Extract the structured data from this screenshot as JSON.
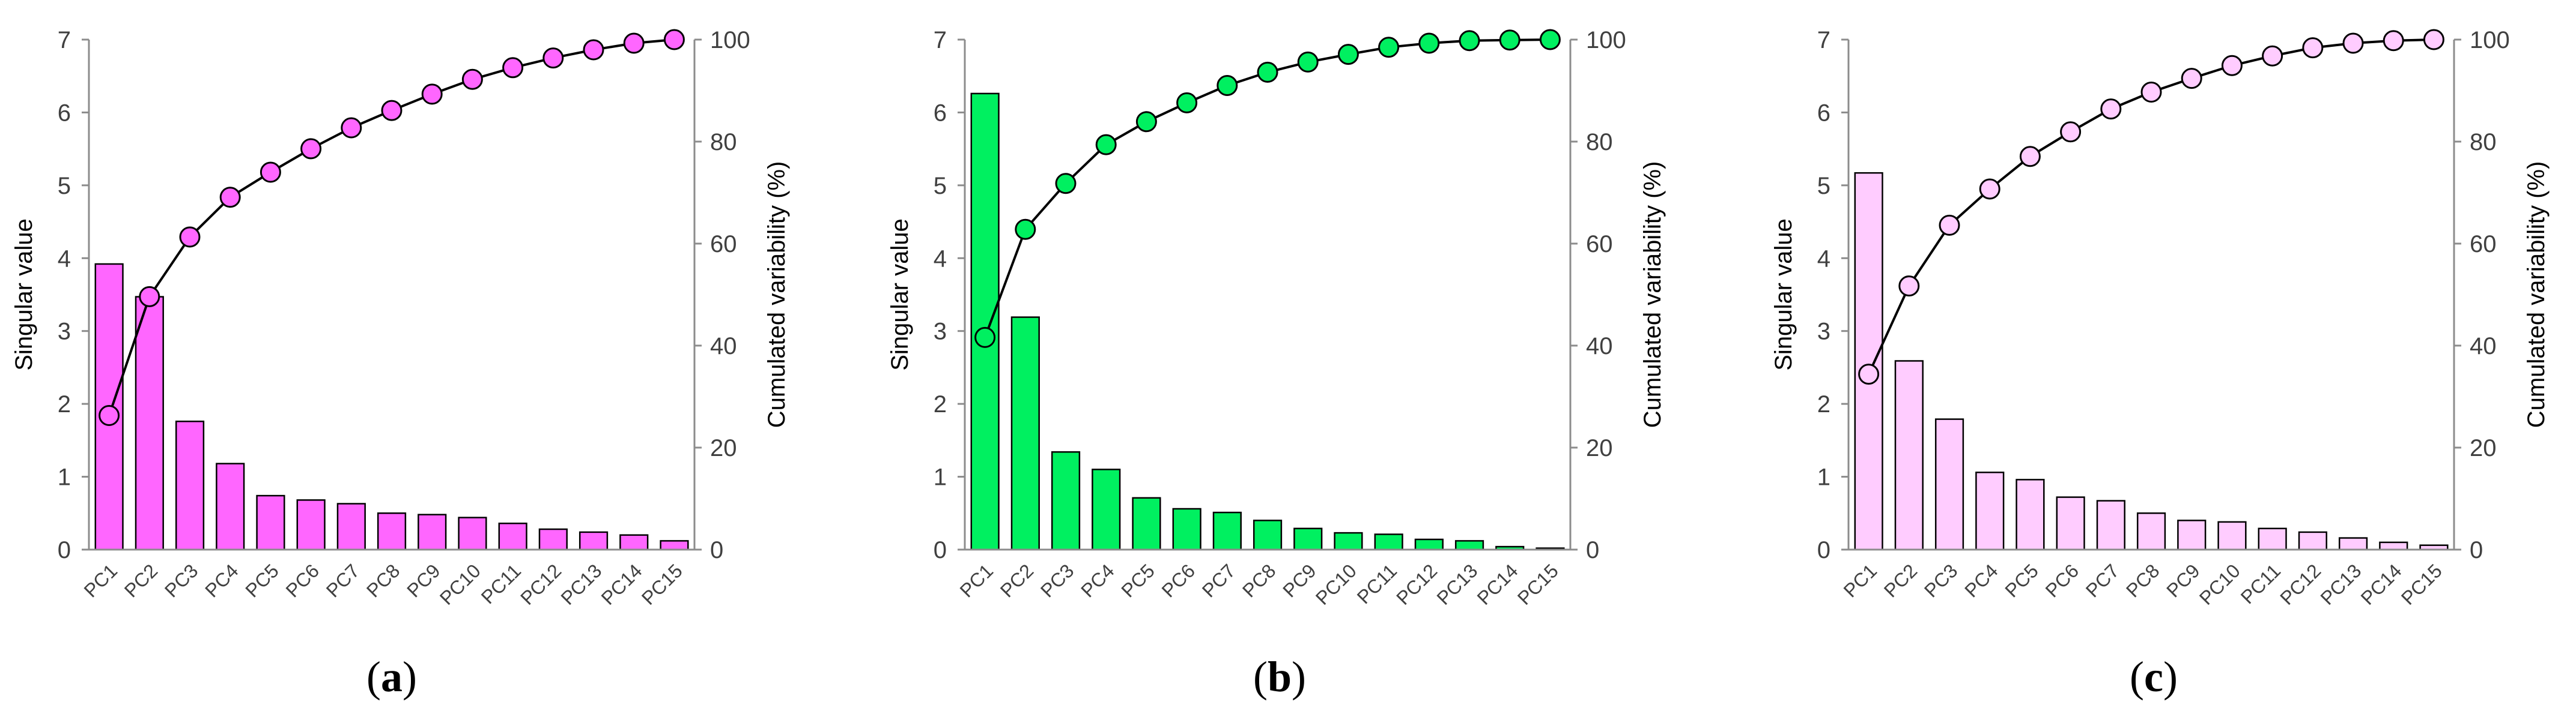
{
  "chart_data": [
    {
      "type": "bar+line",
      "caption_letter": "a",
      "categories": [
        "PC1",
        "PC2",
        "PC3",
        "PC4",
        "PC5",
        "PC6",
        "PC7",
        "PC8",
        "PC9",
        "PC10",
        "PC11",
        "PC12",
        "PC13",
        "PC14",
        "PC15"
      ],
      "series": [
        {
          "name": "Singular value",
          "axis": "left",
          "type": "bar",
          "values": [
            3.92,
            3.47,
            1.76,
            1.18,
            0.74,
            0.68,
            0.63,
            0.5,
            0.48,
            0.44,
            0.36,
            0.28,
            0.24,
            0.2,
            0.12
          ]
        },
        {
          "name": "Cumulated variability (%)",
          "axis": "right",
          "type": "line",
          "values": [
            26.3,
            49.6,
            61.3,
            69.1,
            74.0,
            78.6,
            82.7,
            86.1,
            89.3,
            92.2,
            94.5,
            96.4,
            98.0,
            99.3,
            100.0
          ]
        }
      ],
      "ylabel": "Singular value",
      "y2label": "Cumulated variability (%)",
      "ylim": [
        0,
        7
      ],
      "y2lim": [
        0,
        100
      ],
      "yticks": [
        0,
        1,
        2,
        3,
        4,
        5,
        6,
        7
      ],
      "y2ticks": [
        0,
        20,
        40,
        60,
        80,
        100
      ],
      "bar_color": "#ff66ff",
      "marker_color": "#ff66ff"
    },
    {
      "type": "bar+line",
      "caption_letter": "b",
      "categories": [
        "PC1",
        "PC2",
        "PC3",
        "PC4",
        "PC5",
        "PC6",
        "PC7",
        "PC8",
        "PC9",
        "PC10",
        "PC11",
        "PC12",
        "PC13",
        "PC14",
        "PC15"
      ],
      "series": [
        {
          "name": "Singular value",
          "axis": "left",
          "type": "bar",
          "values": [
            6.26,
            3.19,
            1.34,
            1.1,
            0.71,
            0.56,
            0.51,
            0.4,
            0.29,
            0.23,
            0.21,
            0.14,
            0.12,
            0.04,
            0.02
          ]
        },
        {
          "name": "Cumulated variability (%)",
          "axis": "right",
          "type": "line",
          "values": [
            41.6,
            62.8,
            71.8,
            79.4,
            83.9,
            87.6,
            91.0,
            93.6,
            95.6,
            97.1,
            98.5,
            99.3,
            99.8,
            99.9,
            100.0
          ]
        }
      ],
      "ylabel": "Singular value",
      "y2label": "Cumulated variability (%)",
      "ylim": [
        0,
        7
      ],
      "y2lim": [
        0,
        100
      ],
      "yticks": [
        0,
        1,
        2,
        3,
        4,
        5,
        6,
        7
      ],
      "y2ticks": [
        0,
        20,
        40,
        60,
        80,
        100
      ],
      "bar_color": "#00f060",
      "marker_color": "#00f060"
    },
    {
      "type": "bar+line",
      "caption_letter": "c",
      "categories": [
        "PC1",
        "PC2",
        "PC3",
        "PC4",
        "PC5",
        "PC6",
        "PC7",
        "PC8",
        "PC9",
        "PC10",
        "PC11",
        "PC12",
        "PC13",
        "PC14",
        "PC15"
      ],
      "series": [
        {
          "name": "Singular value",
          "axis": "left",
          "type": "bar",
          "values": [
            5.17,
            2.59,
            1.79,
            1.06,
            0.96,
            0.72,
            0.67,
            0.5,
            0.4,
            0.38,
            0.29,
            0.24,
            0.16,
            0.1,
            0.06
          ]
        },
        {
          "name": "Cumulated variability (%)",
          "axis": "right",
          "type": "line",
          "values": [
            34.4,
            51.7,
            63.6,
            70.7,
            77.1,
            81.9,
            86.4,
            89.7,
            92.4,
            94.9,
            96.8,
            98.4,
            99.3,
            99.8,
            100.0
          ]
        }
      ],
      "ylabel": "Singular value",
      "y2label": "Cumulated variability (%)",
      "ylim": [
        0,
        7
      ],
      "y2lim": [
        0,
        100
      ],
      "yticks": [
        0,
        1,
        2,
        3,
        4,
        5,
        6,
        7
      ],
      "y2ticks": [
        0,
        20,
        40,
        60,
        80,
        100
      ],
      "bar_color": "#ffccff",
      "marker_color": "#ffccff"
    }
  ]
}
